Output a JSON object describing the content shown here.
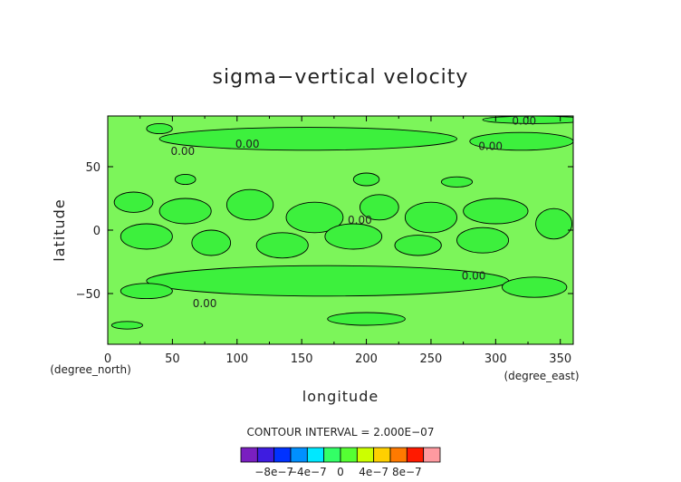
{
  "chart_data": {
    "type": "heatmap",
    "title": "sigma−vertical velocity",
    "xlabel": "longitude",
    "ylabel": "latitude",
    "x_unit": "(degree_east)",
    "y_unit": "(degree_north)",
    "xlim": [
      0,
      360
    ],
    "ylim": [
      -90,
      90
    ],
    "x_ticks": [
      0,
      50,
      100,
      150,
      200,
      250,
      300,
      350
    ],
    "x_tick_labels": [
      "0",
      "50",
      "100",
      "150",
      "200",
      "250",
      "300",
      "350"
    ],
    "y_ticks": [
      50,
      0,
      -50
    ],
    "y_tick_labels": [
      "50",
      "0",
      "−50"
    ],
    "contour_interval_text": "CONTOUR INTERVAL = 2.000E−07",
    "contour_labels": [
      {
        "text": "0.00",
        "lon": 322,
        "lat": 86
      },
      {
        "text": "0.00",
        "lon": 108,
        "lat": 68
      },
      {
        "text": "0.00",
        "lon": 58,
        "lat": 62
      },
      {
        "text": "0.00",
        "lon": 296,
        "lat": 66
      },
      {
        "text": "0.00",
        "lon": 195,
        "lat": 8
      },
      {
        "text": "0.00",
        "lon": 283,
        "lat": -36
      },
      {
        "text": "0.00",
        "lon": 75,
        "lat": -58
      }
    ],
    "color_scale": {
      "tick_labels": [
        "−8e−7",
        "−4e−7",
        "0",
        "4e−7",
        "8e−7"
      ],
      "tick_values": [
        -8e-07,
        -4e-07,
        0,
        4e-07,
        8e-07
      ],
      "colors": [
        "#7a1fc0",
        "#3e1ce0",
        "#0032ff",
        "#0090ff",
        "#00e8ff",
        "#33ff66",
        "#55ff33",
        "#ccff00",
        "#ffd000",
        "#ff7a00",
        "#ff1a00",
        "#ff9aa0"
      ]
    },
    "field_colors": {
      "positive": "#7cf55a",
      "negative": "#3df03d"
    },
    "blobs": [
      {
        "cx": 155,
        "cy": 72,
        "rx": 115,
        "ry": 9
      },
      {
        "cx": 320,
        "cy": 70,
        "rx": 40,
        "ry": 7
      },
      {
        "cx": 40,
        "cy": 80,
        "rx": 10,
        "ry": 4
      },
      {
        "cx": 330,
        "cy": 87,
        "rx": 40,
        "ry": 3
      },
      {
        "cx": 20,
        "cy": 22,
        "rx": 15,
        "ry": 8
      },
      {
        "cx": 60,
        "cy": 15,
        "rx": 20,
        "ry": 10
      },
      {
        "cx": 110,
        "cy": 20,
        "rx": 18,
        "ry": 12
      },
      {
        "cx": 160,
        "cy": 10,
        "rx": 22,
        "ry": 12
      },
      {
        "cx": 210,
        "cy": 18,
        "rx": 15,
        "ry": 10
      },
      {
        "cx": 250,
        "cy": 10,
        "rx": 20,
        "ry": 12
      },
      {
        "cx": 300,
        "cy": 15,
        "rx": 25,
        "ry": 10
      },
      {
        "cx": 345,
        "cy": 5,
        "rx": 14,
        "ry": 12
      },
      {
        "cx": 30,
        "cy": -5,
        "rx": 20,
        "ry": 10
      },
      {
        "cx": 80,
        "cy": -10,
        "rx": 15,
        "ry": 10
      },
      {
        "cx": 135,
        "cy": -12,
        "rx": 20,
        "ry": 10
      },
      {
        "cx": 190,
        "cy": -5,
        "rx": 22,
        "ry": 10
      },
      {
        "cx": 240,
        "cy": -12,
        "rx": 18,
        "ry": 8
      },
      {
        "cx": 290,
        "cy": -8,
        "rx": 20,
        "ry": 10
      },
      {
        "cx": 170,
        "cy": -40,
        "rx": 140,
        "ry": 12
      },
      {
        "cx": 30,
        "cy": -48,
        "rx": 20,
        "ry": 6
      },
      {
        "cx": 330,
        "cy": -45,
        "rx": 25,
        "ry": 8
      },
      {
        "cx": 200,
        "cy": -70,
        "rx": 30,
        "ry": 5
      },
      {
        "cx": 15,
        "cy": -75,
        "rx": 12,
        "ry": 3
      },
      {
        "cx": 60,
        "cy": 40,
        "rx": 8,
        "ry": 4
      },
      {
        "cx": 200,
        "cy": 40,
        "rx": 10,
        "ry": 5
      },
      {
        "cx": 270,
        "cy": 38,
        "rx": 12,
        "ry": 4
      }
    ]
  }
}
